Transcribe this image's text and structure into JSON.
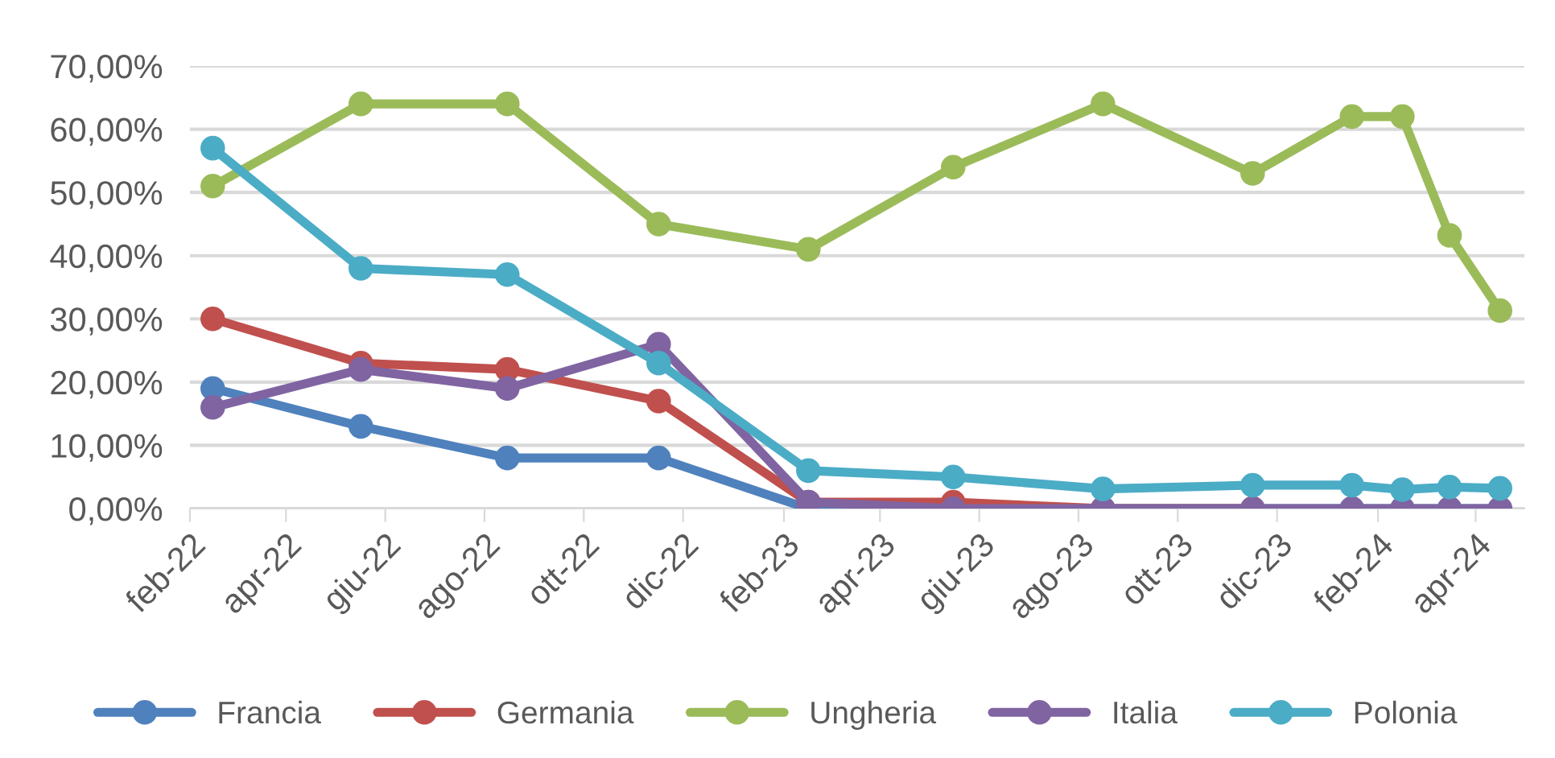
{
  "chart_data": {
    "type": "line",
    "x": [
      "2022-02-15",
      "2022-05-17",
      "2022-08-15",
      "2022-11-16",
      "2023-02-16",
      "2023-05-16",
      "2023-08-16",
      "2023-11-16",
      "2024-01-16",
      "2024-02-16",
      "2024-03-16",
      "2024-04-16"
    ],
    "series": [
      {
        "name": "Francia",
        "color": "#4f81bd",
        "values": [
          19,
          13,
          8,
          8,
          0,
          0,
          0,
          0,
          0,
          0,
          0,
          0
        ]
      },
      {
        "name": "Germania",
        "color": "#c0504d",
        "values": [
          30,
          23,
          22,
          17,
          1,
          1,
          0,
          0,
          null,
          null,
          null,
          null
        ]
      },
      {
        "name": "Ungheria",
        "color": "#9bbb59",
        "values": [
          51,
          64,
          64,
          45,
          41,
          54,
          64,
          53,
          62,
          62,
          43.2,
          31.3
        ]
      },
      {
        "name": "Italia",
        "color": "#8064a2",
        "values": [
          16,
          22,
          19,
          26,
          1,
          0,
          0,
          0,
          0,
          0,
          0,
          0
        ]
      },
      {
        "name": "Polonia",
        "color": "#4bacc6",
        "values": [
          57,
          38,
          37,
          23,
          6,
          5,
          3.1,
          3.7,
          3.7,
          3,
          3.4,
          3.2
        ]
      }
    ],
    "ylim": [
      0,
      70
    ],
    "yticks": [
      {
        "value": 0,
        "label": "0,00%"
      },
      {
        "value": 10,
        "label": "10,00%"
      },
      {
        "value": 20,
        "label": "20,00%"
      },
      {
        "value": 30,
        "label": "30,00%"
      },
      {
        "value": 40,
        "label": "40,00%"
      },
      {
        "value": 50,
        "label": "50,00%"
      },
      {
        "value": 60,
        "label": "60,00%"
      },
      {
        "value": 70,
        "label": "70,00%"
      }
    ],
    "xlim": [
      "2022-02-01",
      "2024-05-01"
    ],
    "xticks": [
      {
        "value": "2022-02-01",
        "label": "feb-22"
      },
      {
        "value": "2022-04-01",
        "label": "apr-22"
      },
      {
        "value": "2022-06-01",
        "label": "giu-22"
      },
      {
        "value": "2022-08-01",
        "label": "ago-22"
      },
      {
        "value": "2022-10-01",
        "label": "ott-22"
      },
      {
        "value": "2022-12-01",
        "label": "dic-22"
      },
      {
        "value": "2023-02-01",
        "label": "feb-23"
      },
      {
        "value": "2023-04-01",
        "label": "apr-23"
      },
      {
        "value": "2023-06-01",
        "label": "giu-23"
      },
      {
        "value": "2023-08-01",
        "label": "ago-23"
      },
      {
        "value": "2023-10-01",
        "label": "ott-23"
      },
      {
        "value": "2023-12-01",
        "label": "dic-23"
      },
      {
        "value": "2024-02-01",
        "label": "feb-24"
      },
      {
        "value": "2024-04-01",
        "label": "apr-24"
      }
    ],
    "grid": "y",
    "legend": "bottom",
    "marker": "circle",
    "line_style": "solid"
  }
}
